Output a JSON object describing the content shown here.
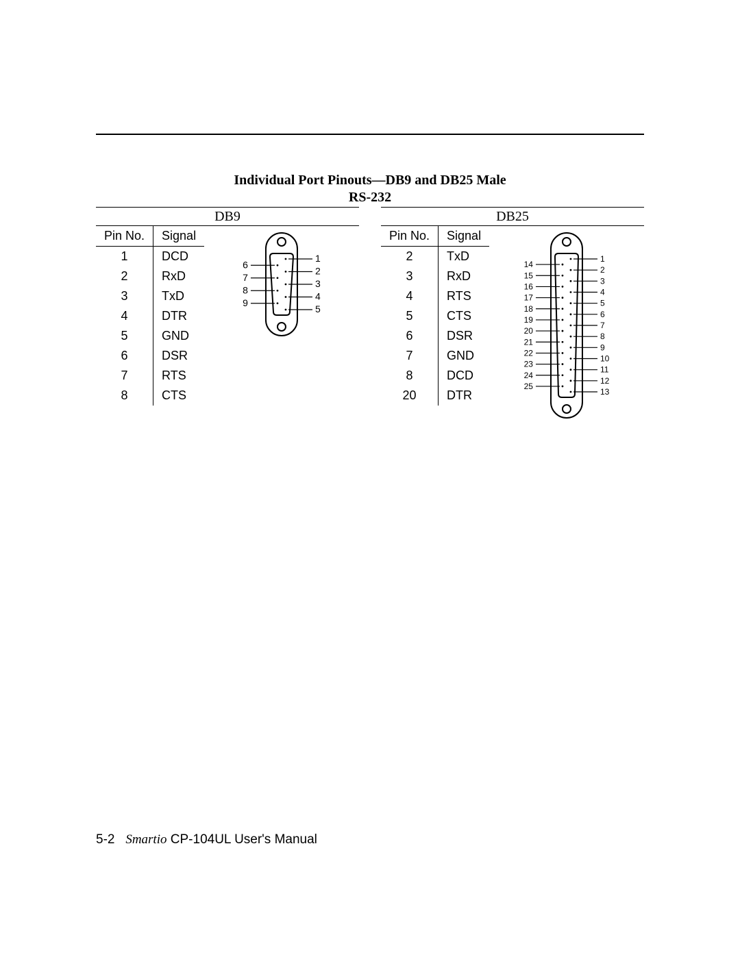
{
  "title": "Individual Port Pinouts—DB9 and DB25 Male",
  "subtitle": "RS-232",
  "footer": {
    "pageno": "5-2",
    "brand": "Smartio",
    "rest": " CP-104UL User's Manual"
  },
  "db9": {
    "header": "DB9",
    "columns": [
      "Pin No.",
      "Signal"
    ],
    "rows": [
      [
        "1",
        "DCD"
      ],
      [
        "2",
        "RxD"
      ],
      [
        "3",
        "TxD"
      ],
      [
        "4",
        "DTR"
      ],
      [
        "5",
        "GND"
      ],
      [
        "6",
        "DSR"
      ],
      [
        "7",
        "RTS"
      ],
      [
        "8",
        "CTS"
      ]
    ],
    "left_nums": [
      "6",
      "7",
      "8",
      "9"
    ],
    "right_nums": [
      "1",
      "2",
      "3",
      "4",
      "5"
    ]
  },
  "db25": {
    "header": "DB25",
    "columns": [
      "Pin No.",
      "Signal"
    ],
    "rows": [
      [
        "2",
        "TxD"
      ],
      [
        "3",
        "RxD"
      ],
      [
        "4",
        "RTS"
      ],
      [
        "5",
        "CTS"
      ],
      [
        "6",
        "DSR"
      ],
      [
        "7",
        "GND"
      ],
      [
        "8",
        "DCD"
      ],
      [
        "20",
        "DTR"
      ]
    ],
    "left_nums": [
      "14",
      "15",
      "16",
      "17",
      "18",
      "19",
      "20",
      "21",
      "22",
      "23",
      "24",
      "25"
    ],
    "right_nums": [
      "1",
      "2",
      "3",
      "4",
      "5",
      "6",
      "7",
      "8",
      "9",
      "10",
      "11",
      "12",
      "13"
    ]
  },
  "style": {
    "stroke": "#000000",
    "stroke_width": 2,
    "dot_r": 1.4,
    "screw_r": 6
  }
}
